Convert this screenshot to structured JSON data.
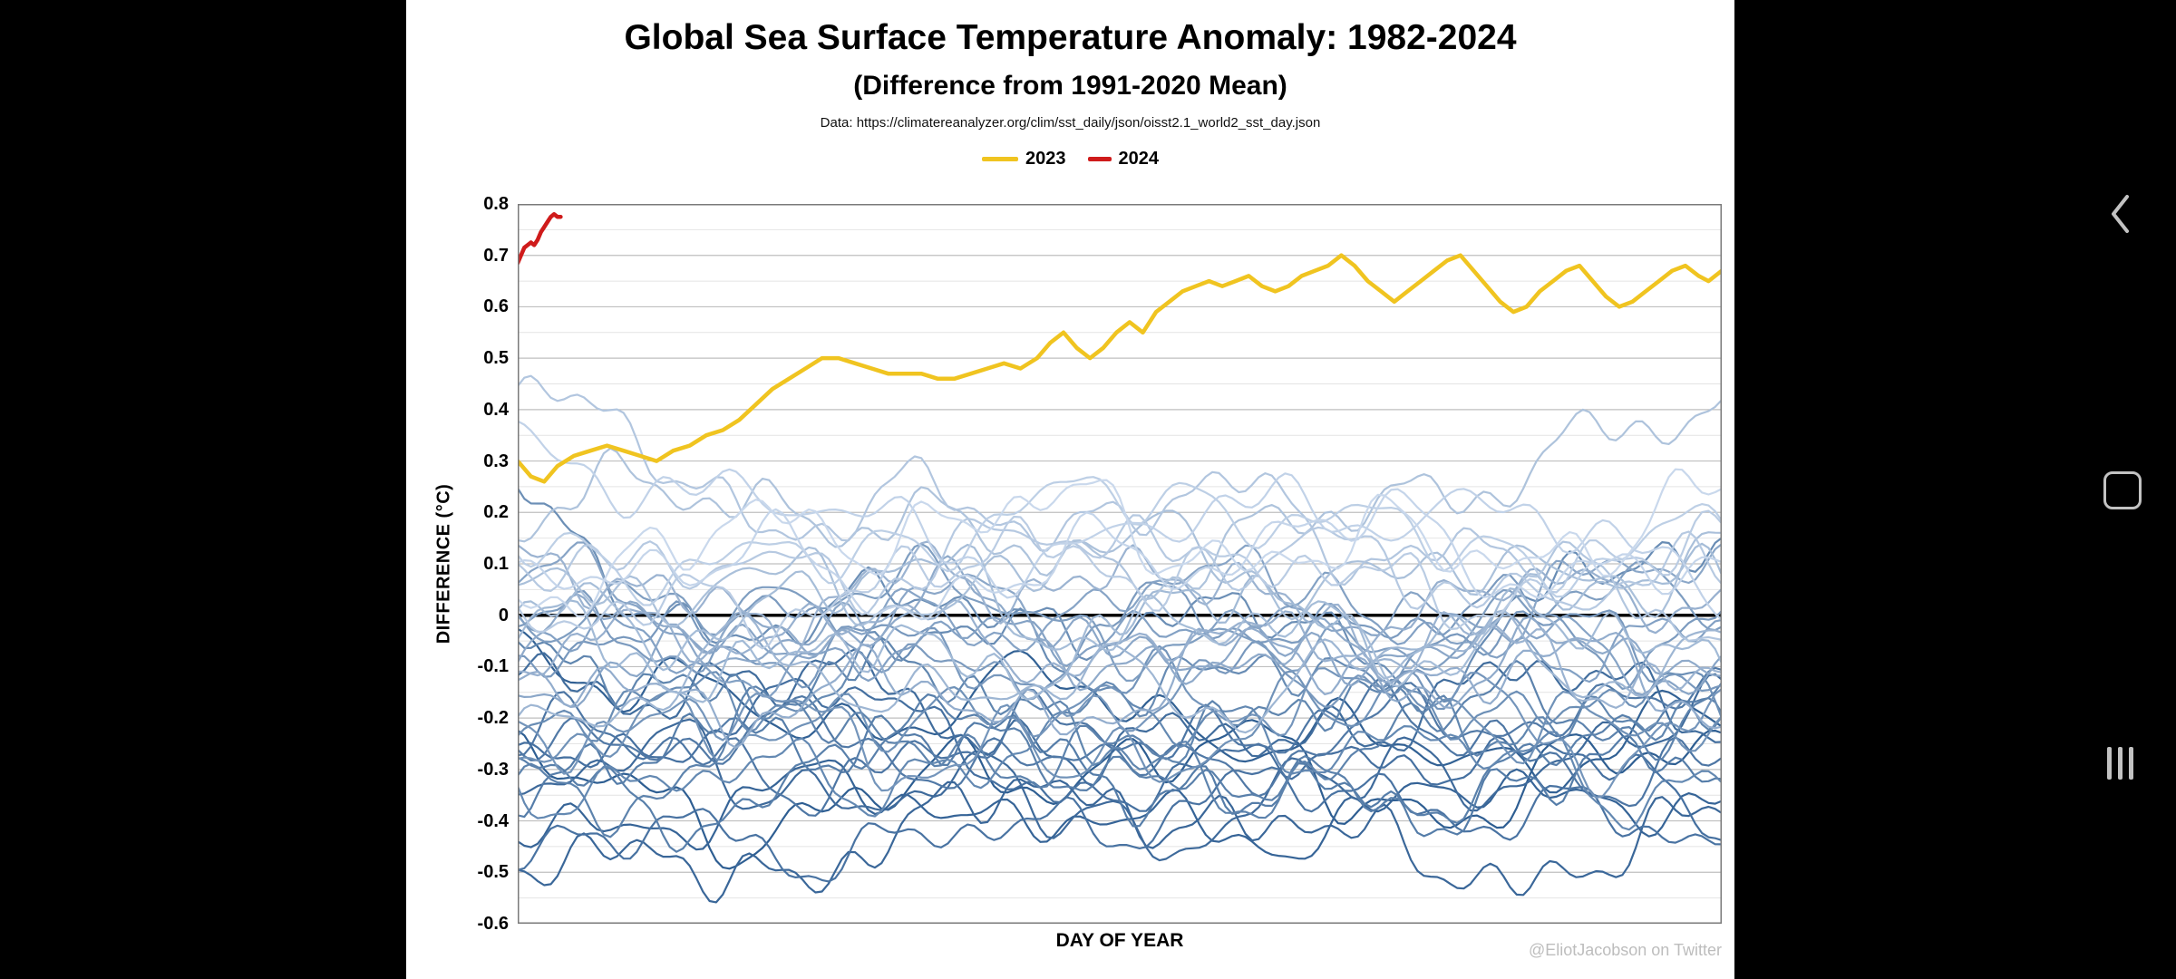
{
  "window": {
    "background": "#000000",
    "panel_background": "#ffffff"
  },
  "chart_data": {
    "type": "line",
    "title": "Global Sea Surface Temperature Anomaly: 1982-2024",
    "subtitle": "(Difference from 1991-2020 Mean)",
    "source_note": "Data: https://climatereanalyzer.org/clim/sst_daily/json/oisst2.1_world2_sst_day.json",
    "watermark": "@EliotJacobson on Twitter",
    "xlabel": "DAY OF YEAR",
    "ylabel": "DIFFERENCE (°C)",
    "xlim": [
      1,
      365
    ],
    "ylim": [
      -0.6,
      0.8
    ],
    "yticks": [
      "0.8",
      "0.7",
      "0.6",
      "0.5",
      "0.4",
      "0.3",
      "0.2",
      "0.1",
      "0",
      "-0.1",
      "-0.2",
      "-0.3",
      "-0.4",
      "-0.5",
      "-0.6"
    ],
    "grid": {
      "major_step": 0.1,
      "minor_step": 0.05,
      "zero_line": true
    },
    "legend_position": "top-center",
    "highlight_series": [
      {
        "name": "2023",
        "color": "#F0C420",
        "width": 4.5,
        "points": [
          [
            1,
            0.3
          ],
          [
            5,
            0.27
          ],
          [
            9,
            0.26
          ],
          [
            13,
            0.29
          ],
          [
            18,
            0.31
          ],
          [
            23,
            0.32
          ],
          [
            28,
            0.33
          ],
          [
            33,
            0.32
          ],
          [
            38,
            0.31
          ],
          [
            43,
            0.3
          ],
          [
            48,
            0.32
          ],
          [
            53,
            0.33
          ],
          [
            58,
            0.35
          ],
          [
            63,
            0.36
          ],
          [
            68,
            0.38
          ],
          [
            73,
            0.41
          ],
          [
            78,
            0.44
          ],
          [
            83,
            0.46
          ],
          [
            88,
            0.48
          ],
          [
            93,
            0.5
          ],
          [
            98,
            0.5
          ],
          [
            103,
            0.49
          ],
          [
            108,
            0.48
          ],
          [
            113,
            0.47
          ],
          [
            118,
            0.47
          ],
          [
            123,
            0.47
          ],
          [
            128,
            0.46
          ],
          [
            133,
            0.46
          ],
          [
            138,
            0.47
          ],
          [
            143,
            0.48
          ],
          [
            148,
            0.49
          ],
          [
            153,
            0.48
          ],
          [
            158,
            0.5
          ],
          [
            162,
            0.53
          ],
          [
            166,
            0.55
          ],
          [
            170,
            0.52
          ],
          [
            174,
            0.5
          ],
          [
            178,
            0.52
          ],
          [
            182,
            0.55
          ],
          [
            186,
            0.57
          ],
          [
            190,
            0.55
          ],
          [
            194,
            0.59
          ],
          [
            198,
            0.61
          ],
          [
            202,
            0.63
          ],
          [
            206,
            0.64
          ],
          [
            210,
            0.65
          ],
          [
            214,
            0.64
          ],
          [
            218,
            0.65
          ],
          [
            222,
            0.66
          ],
          [
            226,
            0.64
          ],
          [
            230,
            0.63
          ],
          [
            234,
            0.64
          ],
          [
            238,
            0.66
          ],
          [
            242,
            0.67
          ],
          [
            246,
            0.68
          ],
          [
            250,
            0.7
          ],
          [
            254,
            0.68
          ],
          [
            258,
            0.65
          ],
          [
            262,
            0.63
          ],
          [
            266,
            0.61
          ],
          [
            270,
            0.63
          ],
          [
            274,
            0.65
          ],
          [
            278,
            0.67
          ],
          [
            282,
            0.69
          ],
          [
            286,
            0.7
          ],
          [
            290,
            0.67
          ],
          [
            294,
            0.64
          ],
          [
            298,
            0.61
          ],
          [
            302,
            0.59
          ],
          [
            306,
            0.6
          ],
          [
            310,
            0.63
          ],
          [
            314,
            0.65
          ],
          [
            318,
            0.67
          ],
          [
            322,
            0.68
          ],
          [
            326,
            0.65
          ],
          [
            330,
            0.62
          ],
          [
            334,
            0.6
          ],
          [
            338,
            0.61
          ],
          [
            342,
            0.63
          ],
          [
            346,
            0.65
          ],
          [
            350,
            0.67
          ],
          [
            354,
            0.68
          ],
          [
            358,
            0.66
          ],
          [
            361,
            0.65
          ],
          [
            365,
            0.67
          ]
        ]
      },
      {
        "name": "2024",
        "color": "#CF1B1B",
        "width": 4.5,
        "points": [
          [
            1,
            0.685
          ],
          [
            2,
            0.7
          ],
          [
            3,
            0.715
          ],
          [
            4,
            0.72
          ],
          [
            5,
            0.725
          ],
          [
            6,
            0.72
          ],
          [
            7,
            0.73
          ],
          [
            8,
            0.745
          ],
          [
            9,
            0.755
          ],
          [
            10,
            0.765
          ],
          [
            11,
            0.775
          ],
          [
            12,
            0.78
          ],
          [
            13,
            0.775
          ],
          [
            14,
            0.775
          ]
        ]
      }
    ],
    "background_series": {
      "description": "Daily sea surface temperature anomaly lines for years 1982-2022, colored dark blue (oldest) to pale blue (most recent); mean = annual mean anomaly, start/end = extra anomaly at start/end of year",
      "color_start": "#2E5E92",
      "color_end": "#C9D8EC",
      "width": 2.2,
      "years": [
        {
          "year": 1982,
          "mean": -0.32,
          "start": -0.05,
          "end": 0.05
        },
        {
          "year": 1983,
          "mean": -0.22,
          "start": 0.18,
          "end": -0.05
        },
        {
          "year": 1984,
          "mean": -0.38,
          "start": -0.02,
          "end": 0.0
        },
        {
          "year": 1985,
          "mean": -0.42,
          "start": -0.03,
          "end": 0.0
        },
        {
          "year": 1986,
          "mean": -0.35,
          "start": 0.0,
          "end": 0.08
        },
        {
          "year": 1987,
          "mean": -0.22,
          "start": 0.1,
          "end": 0.05
        },
        {
          "year": 1988,
          "mean": -0.26,
          "start": 0.05,
          "end": -0.15
        },
        {
          "year": 1989,
          "mean": -0.38,
          "start": -0.12,
          "end": 0.0
        },
        {
          "year": 1990,
          "mean": -0.25,
          "start": 0.0,
          "end": 0.0
        },
        {
          "year": 1991,
          "mean": -0.26,
          "start": -0.02,
          "end": 0.08
        },
        {
          "year": 1992,
          "mean": -0.3,
          "start": 0.05,
          "end": -0.05
        },
        {
          "year": 1993,
          "mean": -0.3,
          "start": 0.0,
          "end": 0.0
        },
        {
          "year": 1994,
          "mean": -0.27,
          "start": -0.03,
          "end": 0.08
        },
        {
          "year": 1995,
          "mean": -0.18,
          "start": 0.08,
          "end": -0.08
        },
        {
          "year": 1996,
          "mean": -0.26,
          "start": -0.04,
          "end": 0.0
        },
        {
          "year": 1997,
          "mean": -0.12,
          "start": -0.05,
          "end": 0.22
        },
        {
          "year": 1998,
          "mean": -0.05,
          "start": 0.25,
          "end": -0.15
        },
        {
          "year": 1999,
          "mean": -0.2,
          "start": -0.1,
          "end": -0.05
        },
        {
          "year": 2000,
          "mean": -0.18,
          "start": -0.08,
          "end": 0.0
        },
        {
          "year": 2001,
          "mean": -0.1,
          "start": 0.0,
          "end": 0.0
        },
        {
          "year": 2002,
          "mean": -0.05,
          "start": 0.0,
          "end": 0.08
        },
        {
          "year": 2003,
          "mean": -0.02,
          "start": 0.06,
          "end": 0.0
        },
        {
          "year": 2004,
          "mean": -0.05,
          "start": 0.0,
          "end": 0.04
        },
        {
          "year": 2005,
          "mean": 0.0,
          "start": 0.04,
          "end": -0.03
        },
        {
          "year": 2006,
          "mean": -0.04,
          "start": -0.05,
          "end": 0.08
        },
        {
          "year": 2007,
          "mean": -0.05,
          "start": 0.06,
          "end": -0.12
        },
        {
          "year": 2008,
          "mean": -0.12,
          "start": -0.1,
          "end": 0.0
        },
        {
          "year": 2009,
          "mean": -0.04,
          "start": -0.04,
          "end": 0.1
        },
        {
          "year": 2010,
          "mean": 0.02,
          "start": 0.12,
          "end": -0.12
        },
        {
          "year": 2011,
          "mean": -0.1,
          "start": -0.12,
          "end": -0.02
        },
        {
          "year": 2012,
          "mean": -0.04,
          "start": -0.06,
          "end": 0.04
        },
        {
          "year": 2013,
          "mean": 0.0,
          "start": 0.0,
          "end": 0.0
        },
        {
          "year": 2014,
          "mean": 0.07,
          "start": 0.0,
          "end": 0.08
        },
        {
          "year": 2015,
          "mean": 0.14,
          "start": 0.06,
          "end": 0.22
        },
        {
          "year": 2016,
          "mean": 0.16,
          "start": 0.28,
          "end": -0.1
        },
        {
          "year": 2017,
          "mean": 0.1,
          "start": 0.05,
          "end": -0.02
        },
        {
          "year": 2018,
          "mean": 0.08,
          "start": -0.08,
          "end": 0.04
        },
        {
          "year": 2019,
          "mean": 0.15,
          "start": 0.02,
          "end": 0.06
        },
        {
          "year": 2020,
          "mean": 0.18,
          "start": 0.08,
          "end": -0.08
        },
        {
          "year": 2021,
          "mean": 0.12,
          "start": -0.08,
          "end": -0.02
        },
        {
          "year": 2022,
          "mean": 0.16,
          "start": -0.04,
          "end": 0.0
        }
      ]
    }
  }
}
